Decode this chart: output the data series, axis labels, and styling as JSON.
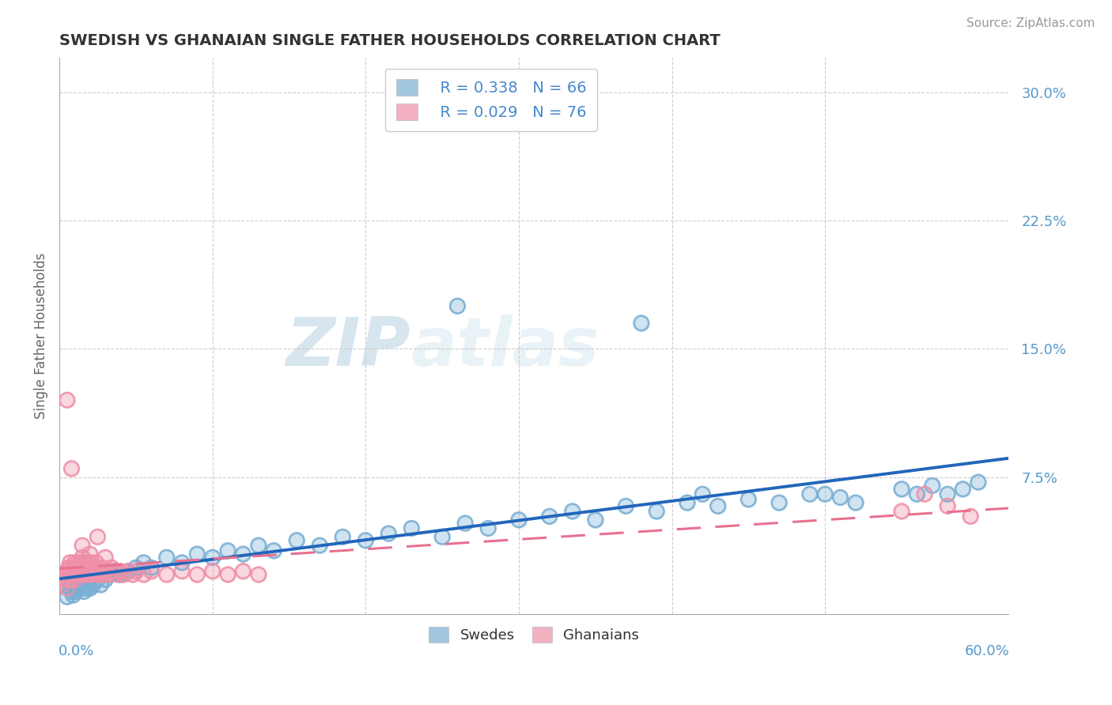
{
  "title": "SWEDISH VS GHANAIAN SINGLE FATHER HOUSEHOLDS CORRELATION CHART",
  "source": "Source: ZipAtlas.com",
  "ylabel": "Single Father Households",
  "xlim": [
    0.0,
    0.62
  ],
  "ylim": [
    -0.005,
    0.32
  ],
  "legend_r1": "R = 0.338",
  "legend_n1": "N = 66",
  "legend_r2": "R = 0.029",
  "legend_n2": "N = 76",
  "swedes_color": "#7aafd4",
  "ghanaians_color": "#f090a8",
  "swedes_line_color": "#2266bb",
  "ghanaians_line_color": "#e87090",
  "background_color": "#ffffff",
  "grid_color": "#cccccc",
  "ytick_color": "#5599cc",
  "watermark_color": "#d0e4f0",
  "swedes_x": [
    0.005,
    0.007,
    0.008,
    0.009,
    0.01,
    0.011,
    0.012,
    0.013,
    0.014,
    0.015,
    0.016,
    0.017,
    0.018,
    0.019,
    0.02,
    0.022,
    0.025,
    0.027,
    0.03,
    0.033,
    0.036,
    0.04,
    0.045,
    0.05,
    0.055,
    0.06,
    0.07,
    0.08,
    0.09,
    0.1,
    0.11,
    0.12,
    0.13,
    0.14,
    0.155,
    0.17,
    0.185,
    0.2,
    0.215,
    0.23,
    0.25,
    0.265,
    0.28,
    0.3,
    0.32,
    0.335,
    0.35,
    0.37,
    0.39,
    0.41,
    0.43,
    0.45,
    0.47,
    0.49,
    0.26,
    0.38,
    0.42,
    0.5,
    0.51,
    0.52,
    0.55,
    0.56,
    0.57,
    0.58,
    0.59,
    0.6
  ],
  "swedes_y": [
    0.005,
    0.01,
    0.008,
    0.006,
    0.012,
    0.008,
    0.01,
    0.012,
    0.015,
    0.01,
    0.008,
    0.012,
    0.01,
    0.015,
    0.01,
    0.012,
    0.015,
    0.012,
    0.015,
    0.018,
    0.02,
    0.018,
    0.02,
    0.022,
    0.025,
    0.022,
    0.028,
    0.025,
    0.03,
    0.028,
    0.032,
    0.03,
    0.035,
    0.032,
    0.038,
    0.035,
    0.04,
    0.038,
    0.042,
    0.045,
    0.04,
    0.048,
    0.045,
    0.05,
    0.052,
    0.055,
    0.05,
    0.058,
    0.055,
    0.06,
    0.058,
    0.062,
    0.06,
    0.065,
    0.175,
    0.165,
    0.065,
    0.065,
    0.063,
    0.06,
    0.068,
    0.065,
    0.07,
    0.065,
    0.068,
    0.072
  ],
  "ghanaians_x": [
    0.002,
    0.003,
    0.004,
    0.005,
    0.005,
    0.006,
    0.006,
    0.007,
    0.007,
    0.008,
    0.008,
    0.009,
    0.009,
    0.01,
    0.01,
    0.01,
    0.011,
    0.011,
    0.012,
    0.012,
    0.013,
    0.013,
    0.014,
    0.014,
    0.015,
    0.015,
    0.015,
    0.016,
    0.016,
    0.017,
    0.017,
    0.018,
    0.018,
    0.019,
    0.019,
    0.02,
    0.02,
    0.021,
    0.022,
    0.023,
    0.024,
    0.025,
    0.025,
    0.026,
    0.027,
    0.028,
    0.029,
    0.03,
    0.032,
    0.034,
    0.036,
    0.038,
    0.04,
    0.042,
    0.045,
    0.048,
    0.05,
    0.055,
    0.06,
    0.07,
    0.08,
    0.09,
    0.1,
    0.11,
    0.12,
    0.13,
    0.005,
    0.008,
    0.015,
    0.02,
    0.025,
    0.03,
    0.55,
    0.565,
    0.58,
    0.595
  ],
  "ghanaians_y": [
    0.012,
    0.015,
    0.018,
    0.01,
    0.02,
    0.015,
    0.022,
    0.018,
    0.025,
    0.015,
    0.02,
    0.018,
    0.022,
    0.015,
    0.02,
    0.025,
    0.018,
    0.022,
    0.02,
    0.025,
    0.018,
    0.022,
    0.02,
    0.025,
    0.018,
    0.022,
    0.028,
    0.02,
    0.025,
    0.018,
    0.022,
    0.02,
    0.025,
    0.018,
    0.022,
    0.02,
    0.025,
    0.018,
    0.022,
    0.02,
    0.025,
    0.018,
    0.022,
    0.02,
    0.018,
    0.022,
    0.018,
    0.02,
    0.018,
    0.022,
    0.02,
    0.018,
    0.02,
    0.018,
    0.02,
    0.018,
    0.02,
    0.018,
    0.02,
    0.018,
    0.02,
    0.018,
    0.02,
    0.018,
    0.02,
    0.018,
    0.12,
    0.08,
    0.035,
    0.03,
    0.04,
    0.028,
    0.055,
    0.065,
    0.058,
    0.052
  ]
}
